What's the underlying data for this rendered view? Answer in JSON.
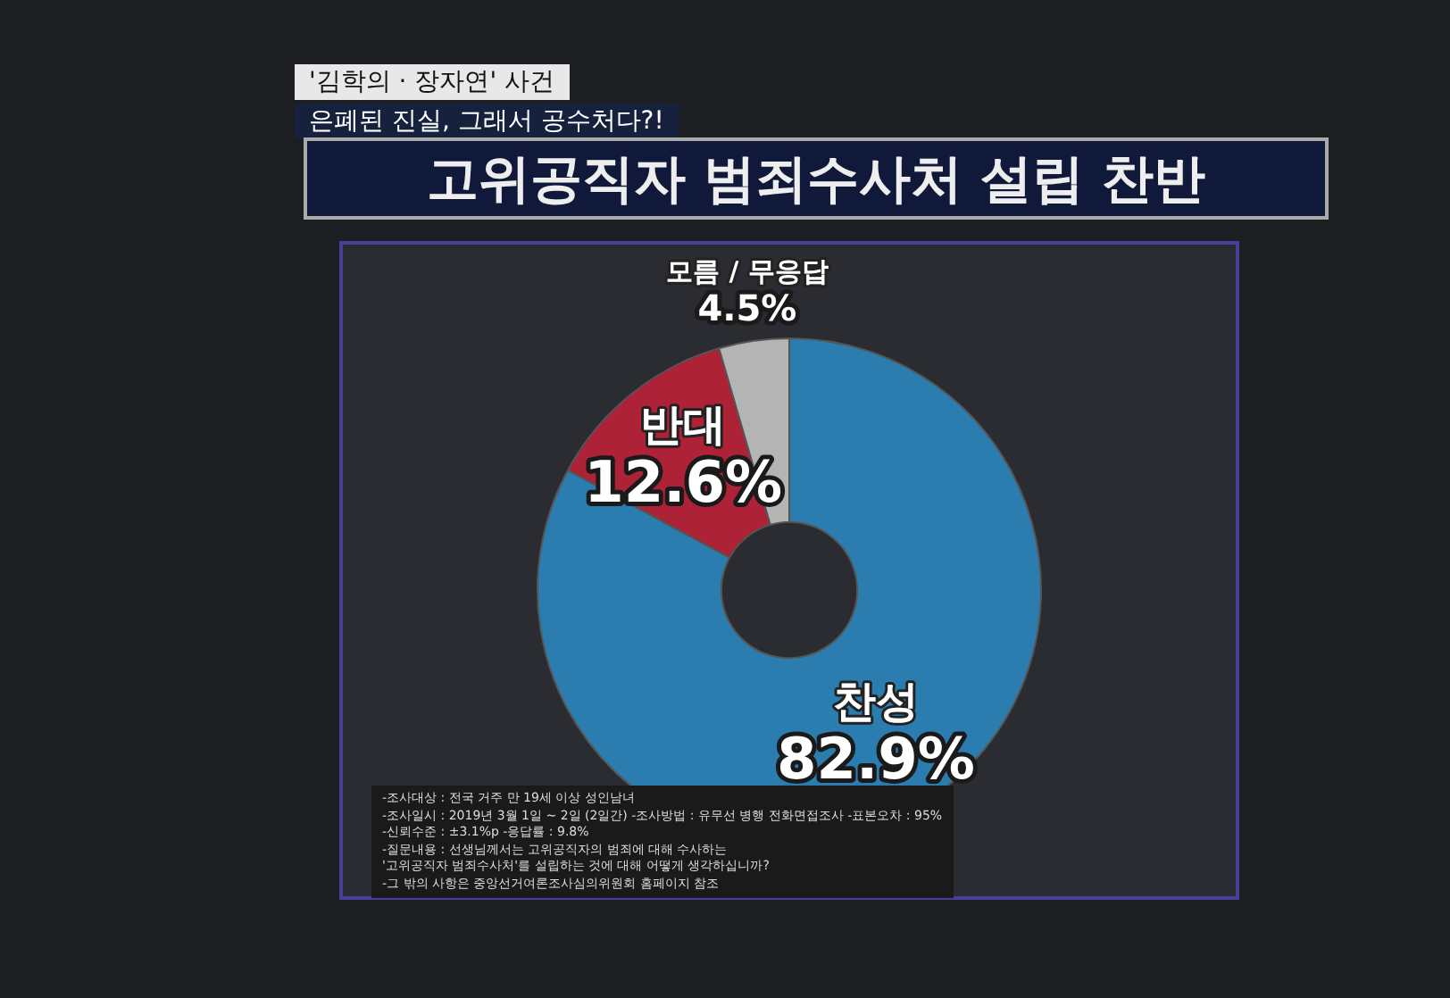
{
  "chart_data": {
    "type": "donut",
    "title": "고위공직자 범죄수사처 설립 찬반",
    "subtitle": "'김학의 · 장자연' 사건\n은폐된 진실, 그래서 공수처다?!",
    "categories": [
      "찬성",
      "반대",
      "모름 / 무응답"
    ],
    "values": [
      82.9,
      12.6,
      4.5
    ],
    "colors": [
      "#2b7db0",
      "#ad2236",
      "#b4b4b4"
    ],
    "value_labels": [
      "82.9%",
      "12.6%",
      "4.5%"
    ],
    "annotations": [
      "-조사대상 : 전국 거주 만 19세 이상 성인남녀",
      "-조사일시 : 2019년 3월 1일 ~ 2일 (2일간)  -조사방법 : 유무선 병행 전화면접조사  -표본오차 : 95%",
      "-신뢰수준 : ±3.1%p  -응답률 : 9.8%",
      "-질문내용 : 선생님께서는 고위공직자의 범죄에 대해 수사하는",
      "'고위공직자 범죄수사처'를 설립하는 것에 대해 어떻게 생각하십니까?",
      "-그 밖의 사항은 중앙선거여론조사심의위원회 홈페이지 참조"
    ],
    "legend": false
  }
}
